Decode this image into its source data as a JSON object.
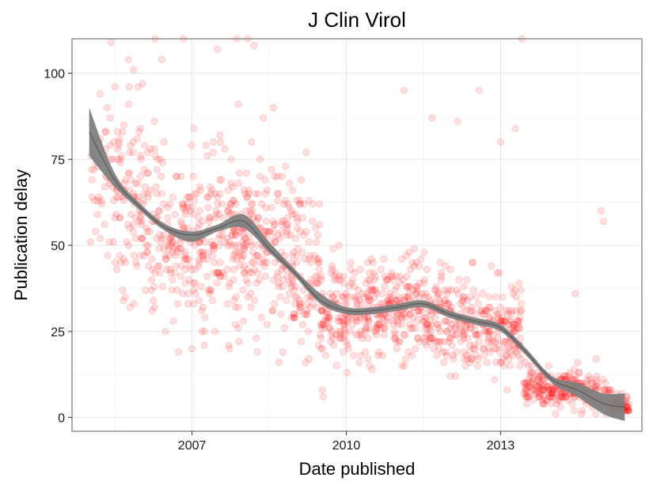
{
  "chart_data": {
    "type": "scatter",
    "title": "J Clin Virol",
    "xlabel": "Date published",
    "ylabel": "Publication delay",
    "x_axis_type": "date",
    "xlim": [
      "2004-09-01",
      "2015-10-01"
    ],
    "ylim": [
      -4,
      110
    ],
    "x_ticks": [
      "2007",
      "2010",
      "2013"
    ],
    "y_ticks": [
      0,
      25,
      50,
      75,
      100
    ],
    "grid": true,
    "legend": "none",
    "point_color": "#ff0000",
    "point_opacity": 0.12,
    "band_color": "#7f7f7f",
    "smooth_line_color": "#3c3c3c",
    "smoother": {
      "x": [
        "2005-01-01",
        "2005-07-01",
        "2006-01-01",
        "2006-07-01",
        "2007-01-01",
        "2007-07-01",
        "2008-01-01",
        "2008-07-01",
        "2009-01-01",
        "2009-07-01",
        "2010-01-01",
        "2010-07-01",
        "2011-01-01",
        "2011-07-01",
        "2012-01-01",
        "2012-07-01",
        "2013-01-01",
        "2013-07-01",
        "2014-01-01",
        "2014-07-01",
        "2015-01-01",
        "2015-06-01"
      ],
      "y": [
        83,
        69,
        61,
        55,
        53,
        55,
        57,
        49,
        42,
        34,
        31,
        31,
        32,
        33,
        30,
        28,
        26,
        19,
        11,
        8,
        4,
        3
      ],
      "lower": [
        76,
        67,
        60,
        54,
        51,
        54,
        55,
        48,
        41,
        33,
        30,
        30,
        31,
        32,
        29,
        27,
        25,
        18,
        10,
        6,
        1,
        -1
      ],
      "upper": [
        90,
        71,
        62,
        56,
        54,
        56,
        59,
        51,
        43,
        36,
        32,
        32,
        33,
        34,
        31,
        29,
        27,
        20,
        12,
        10,
        7,
        7
      ]
    },
    "scatter_segments": [
      {
        "start": "2005-01-01",
        "end": "2005-07-01",
        "n": 45,
        "center": [
          80,
          65
        ],
        "spread": 14
      },
      {
        "start": "2005-07-01",
        "end": "2006-07-01",
        "n": 160,
        "center": [
          65,
          55
        ],
        "spread": 16
      },
      {
        "start": "2006-07-01",
        "end": "2007-07-01",
        "n": 170,
        "center": [
          52,
          48
        ],
        "spread": 12
      },
      {
        "start": "2007-07-01",
        "end": "2008-07-01",
        "n": 190,
        "center": [
          50,
          52
        ],
        "spread": 12
      },
      {
        "start": "2008-07-01",
        "end": "2009-07-01",
        "n": 170,
        "center": [
          50,
          38
        ],
        "spread": 12
      },
      {
        "start": "2009-07-01",
        "end": "2010-07-01",
        "n": 170,
        "center": [
          30,
          30
        ],
        "spread": 7
      },
      {
        "start": "2010-07-01",
        "end": "2011-07-01",
        "n": 170,
        "center": [
          32,
          32
        ],
        "spread": 7
      },
      {
        "start": "2011-07-01",
        "end": "2012-07-01",
        "n": 170,
        "center": [
          31,
          27
        ],
        "spread": 7
      },
      {
        "start": "2012-07-01",
        "end": "2013-06-01",
        "n": 150,
        "center": [
          26,
          27
        ],
        "spread": 7
      },
      {
        "start": "2013-06-15",
        "end": "2014-06-01",
        "n": 160,
        "center": [
          9,
          8
        ],
        "spread": 2.5
      },
      {
        "start": "2014-06-01",
        "end": "2015-03-01",
        "n": 100,
        "center": [
          8,
          5
        ],
        "spread": 3
      },
      {
        "start": "2015-03-01",
        "end": "2015-07-01",
        "n": 70,
        "center": [
          3,
          3
        ],
        "spread": 1.5
      }
    ],
    "outliers": [
      {
        "x": "2006-04-15",
        "y": 110
      },
      {
        "x": "2006-06-01",
        "y": 104
      },
      {
        "x": "2006-11-01",
        "y": 110
      },
      {
        "x": "2007-07-01",
        "y": 107
      },
      {
        "x": "2007-11-15",
        "y": 110
      },
      {
        "x": "2008-02-01",
        "y": 110
      },
      {
        "x": "2008-03-15",
        "y": 108
      },
      {
        "x": "2008-08-01",
        "y": 90
      },
      {
        "x": "2011-02-15",
        "y": 95
      },
      {
        "x": "2011-09-01",
        "y": 87
      },
      {
        "x": "2012-03-01",
        "y": 86
      },
      {
        "x": "2012-08-01",
        "y": 95
      },
      {
        "x": "2013-01-01",
        "y": 80
      },
      {
        "x": "2013-04-15",
        "y": 84
      },
      {
        "x": "2013-06-01",
        "y": 110
      },
      {
        "x": "2014-12-15",
        "y": 60
      },
      {
        "x": "2015-01-01",
        "y": 57
      },
      {
        "x": "2009-07-15",
        "y": 8
      },
      {
        "x": "2009-07-20",
        "y": 6
      },
      {
        "x": "2012-02-15",
        "y": 12
      },
      {
        "x": "2014-06-15",
        "y": 36
      }
    ]
  }
}
